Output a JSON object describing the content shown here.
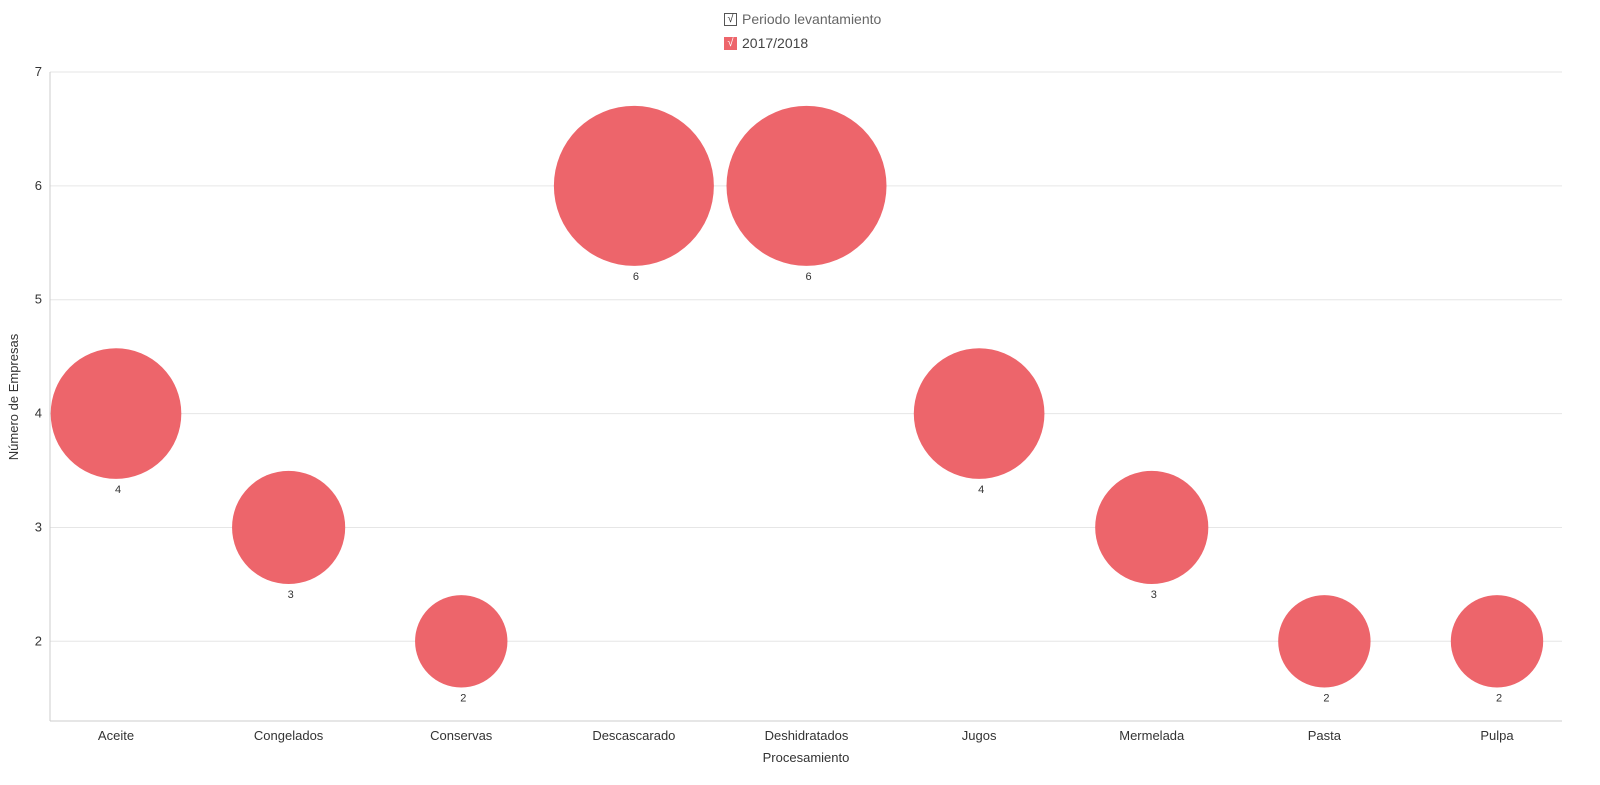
{
  "legend": {
    "header_label": "Periodo levantamiento",
    "series_label": "2017/2018",
    "check_glyph": "√"
  },
  "chart_data": {
    "type": "scatter",
    "subtype": "bubble",
    "xlabel": "Procesamiento",
    "ylabel": "Número de Empresas",
    "categories": [
      "Aceite",
      "Congelados",
      "Conservas",
      "Descascarado",
      "Deshidratados",
      "Jugos",
      "Mermelada",
      "Pasta",
      "Pulpa"
    ],
    "ylim": [
      1.3,
      7
    ],
    "yticks": [
      2,
      3,
      4,
      5,
      6,
      7
    ],
    "grid": true,
    "legend_position": "top-center",
    "series": [
      {
        "name": "2017/2018",
        "color": "#ed656b",
        "values": [
          4,
          3,
          2,
          6,
          6,
          4,
          3,
          2,
          2
        ],
        "sizes": [
          4,
          3,
          2,
          6,
          6,
          4,
          3,
          2,
          2
        ]
      }
    ]
  }
}
